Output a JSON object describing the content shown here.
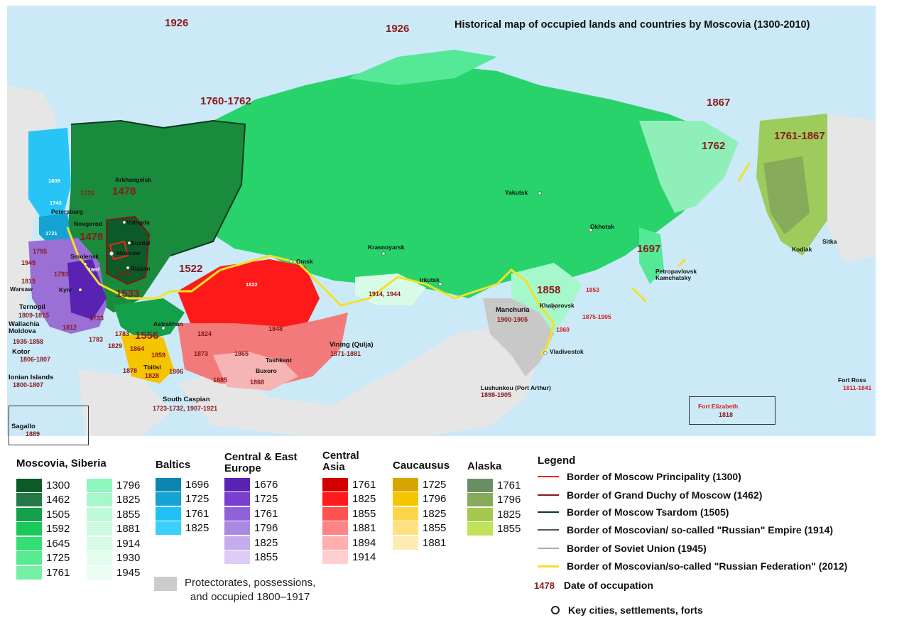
{
  "map": {
    "title": "Historical map of occupied lands and countries by Moscovia (1300-2010)",
    "colors": {
      "sea": "#cbe9f7",
      "land_neutral": "#e8e8e8",
      "siberia_main": "#27d36a",
      "siberia_light": "#55e897",
      "far_east_light": "#8ef0b8",
      "tsardom_dark": "#1a8a3d",
      "principality_darkest": "#0b5a27",
      "central_asia_red": "#ff1a1a",
      "central_asia_pink": "#f27a7a",
      "central_asia_lightpink": "#f7b4b4",
      "caucasus_yellow": "#f5c400",
      "central_east_europe_purple": "#9a6fd6",
      "baltics_blue": "#27c4f5",
      "alaska_green": "#9dcb5c",
      "protectorate_grey": "#c8c8c8",
      "border_2012": "#f8e23a"
    },
    "year_labels": [
      {
        "text": "1926",
        "cls": "yr-big"
      },
      {
        "text": "1926",
        "cls": "yr-big"
      },
      {
        "text": "1760-1762",
        "cls": "yr-big"
      },
      {
        "text": "1867",
        "cls": "yr-big"
      },
      {
        "text": "1761-1867",
        "cls": "yr-big"
      },
      {
        "text": "1762",
        "cls": "yr-big"
      },
      {
        "text": "1478",
        "cls": "yr-big"
      },
      {
        "text": "1478",
        "cls": "yr-big"
      },
      {
        "text": "1522",
        "cls": "yr-big"
      },
      {
        "text": "1533",
        "cls": "yr-big"
      },
      {
        "text": "1556",
        "cls": "yr-big"
      },
      {
        "text": "1697",
        "cls": "yr-big"
      },
      {
        "text": "1858",
        "cls": "yr-big"
      }
    ],
    "small_years": [
      {
        "text": "1809"
      },
      {
        "text": "1721"
      },
      {
        "text": "1743"
      },
      {
        "text": "1721"
      },
      {
        "text": "1795"
      },
      {
        "text": "1945"
      },
      {
        "text": "1793"
      },
      {
        "text": "1815"
      },
      {
        "text": "1667"
      },
      {
        "text": "1812"
      },
      {
        "text": "1733"
      },
      {
        "text": "1783"
      },
      {
        "text": "1783"
      },
      {
        "text": "1829"
      },
      {
        "text": "1864"
      },
      {
        "text": "1859"
      },
      {
        "text": "1878"
      },
      {
        "text": "1806"
      },
      {
        "text": "1521"
      },
      {
        "text": "1824"
      },
      {
        "text": "1873"
      },
      {
        "text": "1865"
      },
      {
        "text": "1885"
      },
      {
        "text": "1868"
      },
      {
        "text": "1848"
      },
      {
        "text": "1822"
      }
    ],
    "cities": [
      {
        "text": "Arkhangelsk"
      },
      {
        "text": "Petersburg"
      },
      {
        "text": "Novgorod"
      },
      {
        "text": "Vologda"
      },
      {
        "text": "Suzdal"
      },
      {
        "text": "Moscow"
      },
      {
        "text": "Riazan"
      },
      {
        "text": "Smolensk"
      },
      {
        "text": "Kyiv"
      },
      {
        "text": "Warsaw"
      },
      {
        "text": "Astrakhan"
      },
      {
        "text": "Omsk"
      },
      {
        "text": "Krasnoyarsk"
      },
      {
        "text": "Irkutsk"
      },
      {
        "text": "Yakutsk"
      },
      {
        "text": "Okhotsk"
      },
      {
        "text": "Kodiak"
      },
      {
        "text": "Sitka"
      },
      {
        "text": "Khabarovsk"
      },
      {
        "text": "Vladivostok"
      },
      {
        "text": "Tashkent"
      },
      {
        "text": "Buxoro"
      },
      {
        "text": "Tbilisi"
      }
    ],
    "regions": [
      {
        "name": "Ternopil",
        "years": "1809-1815"
      },
      {
        "name": "Wallachia\nMoldova",
        "years": "1935-1858"
      },
      {
        "name": "Kotor",
        "years": "1806-1807"
      },
      {
        "name": "Ionian Islands",
        "years": "1800-1807"
      },
      {
        "name": "Sagallo",
        "years": "1889"
      },
      {
        "name": "South Caspian",
        "years": "1723-1732, 1907-1921"
      },
      {
        "name": "Vining (Qulja)",
        "years": "1871-1881"
      },
      {
        "name": "Manchuria",
        "years": "1900-1905"
      },
      {
        "name": "Lushunkou (Port Arthur)",
        "years": "1898-1905"
      },
      {
        "name": "Petropavlovsk\nKamchatsky",
        "years": ""
      },
      {
        "name": "Fort Elizabeth",
        "years": "1818"
      },
      {
        "name": "Fort Ross",
        "years": "1811-1841"
      }
    ],
    "misc_labels": {
      "tbilisi_year": "1828",
      "mongolia_years": "1914, 1944",
      "khabarovsk_1853": "1853",
      "khabarovsk_range": "1875-1905",
      "vladivostok_1860": "1860"
    }
  },
  "legend": {
    "groups": [
      {
        "title": "Moscovia, Siberia",
        "columns": [
          [
            {
              "year": "1300",
              "color": "#0b5a27"
            },
            {
              "year": "1462",
              "color": "#237a47"
            },
            {
              "year": "1505",
              "color": "#12a14a"
            },
            {
              "year": "1592",
              "color": "#1bc95a"
            },
            {
              "year": "1645",
              "color": "#33df75"
            },
            {
              "year": "1725",
              "color": "#55eb8f"
            },
            {
              "year": "1761",
              "color": "#76f0a6"
            }
          ],
          [
            {
              "year": "1796",
              "color": "#8ef7bd"
            },
            {
              "year": "1825",
              "color": "#a6f8cc"
            },
            {
              "year": "1855",
              "color": "#bef9d9"
            },
            {
              "year": "1881",
              "color": "#cdfae2"
            },
            {
              "year": "1914",
              "color": "#d8fbe8"
            },
            {
              "year": "1930",
              "color": "#e2fcee"
            },
            {
              "year": "1945",
              "color": "#ebfdf3"
            }
          ]
        ]
      },
      {
        "title": "Baltics",
        "columns": [
          [
            {
              "year": "1696",
              "color": "#0c86b0"
            },
            {
              "year": "1725",
              "color": "#14a3d2"
            },
            {
              "year": "1761",
              "color": "#1fc1f4"
            },
            {
              "year": "1825",
              "color": "#39d1fb"
            }
          ]
        ]
      },
      {
        "title": "Central & East Europe",
        "columns": [
          [
            {
              "year": "1676",
              "color": "#5a22b3"
            },
            {
              "year": "1725",
              "color": "#7a3fd0"
            },
            {
              "year": "1761",
              "color": "#9062d9"
            },
            {
              "year": "1796",
              "color": "#aa89e3"
            },
            {
              "year": "1825",
              "color": "#c4aced"
            },
            {
              "year": "1855",
              "color": "#dcccf5"
            }
          ]
        ]
      },
      {
        "title": "Central Asia",
        "columns": [
          [
            {
              "year": "1761",
              "color": "#d40000"
            },
            {
              "year": "1825",
              "color": "#ff1b1b"
            },
            {
              "year": "1855",
              "color": "#ff5252"
            },
            {
              "year": "1881",
              "color": "#ff8585"
            },
            {
              "year": "1894",
              "color": "#ffafaf"
            },
            {
              "year": "1914",
              "color": "#ffcfcf"
            }
          ]
        ]
      },
      {
        "title": "Caucausus",
        "columns": [
          [
            {
              "year": "1725",
              "color": "#d9a600"
            },
            {
              "year": "1796",
              "color": "#f7c500"
            },
            {
              "year": "1825",
              "color": "#fbd64a"
            },
            {
              "year": "1855",
              "color": "#fde080"
            },
            {
              "year": "1881",
              "color": "#feebb1"
            }
          ]
        ]
      },
      {
        "title": "Alaska",
        "columns": [
          [
            {
              "year": "1761",
              "color": "#6b8f63"
            },
            {
              "year": "1796",
              "color": "#86ab5b"
            },
            {
              "year": "1825",
              "color": "#a4c94f"
            },
            {
              "year": "1855",
              "color": "#bfe35b"
            }
          ]
        ]
      }
    ],
    "protectorate": {
      "color": "#cccccc",
      "line1": "Protectorates, possessions,",
      "line2": "and occupied  1800–1917"
    },
    "key": {
      "title": "Legend",
      "lines": [
        {
          "label": "Border of Moscow Principality (1300)",
          "color": "#ee2222"
        },
        {
          "label": "Border of Grand Duchy of Moscow (1462)",
          "color": "#8b1414"
        },
        {
          "label": "Border of Moscow Tsardom (1505)",
          "color": "#0e3b1e"
        },
        {
          "label": "Border of Moscovian/ so-called \"Russian\" Empire (1914)",
          "color": "#555555"
        },
        {
          "label": "Border of Soviet Union (1945)",
          "color": "#aaaaaa"
        },
        {
          "label": "Border of Moscovian/so-called \"Russian Federation\" (2012)",
          "color": "#f3e02a"
        }
      ],
      "occupation_sample": "1478",
      "occupation_label": "Date of occupation",
      "cities_label": "Key cities, settlements, forts"
    }
  }
}
